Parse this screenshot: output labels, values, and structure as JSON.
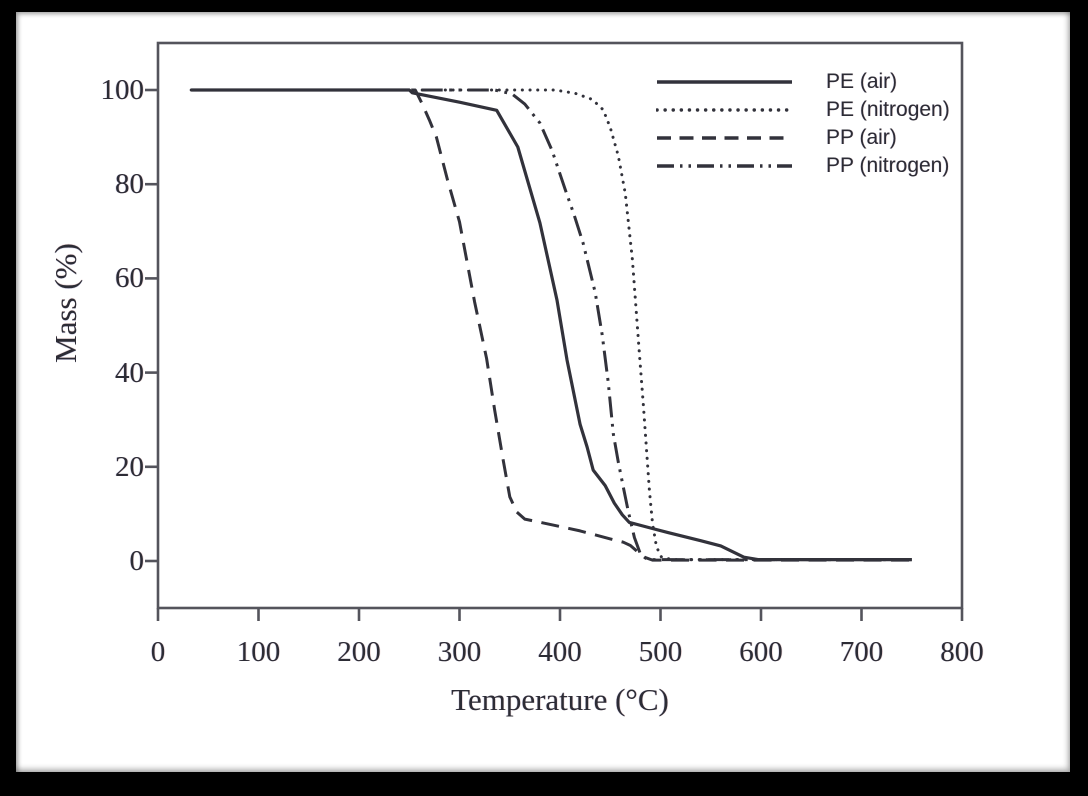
{
  "figure": {
    "paper_color": "#ffffff",
    "frame_color": "#000000",
    "ink_color": "#32323b",
    "axis_color": "#54545c"
  },
  "chart_data": {
    "type": "line",
    "title": "",
    "xlabel": "Temperature (°C)",
    "ylabel": "Mass (%)",
    "xlim": [
      0,
      800
    ],
    "ylim": [
      0,
      100
    ],
    "x_ticks": [
      0,
      100,
      200,
      300,
      400,
      500,
      600,
      700,
      800
    ],
    "y_ticks": [
      0,
      20,
      40,
      60,
      80,
      100
    ],
    "grid": false,
    "legend_position": "top-right",
    "series": [
      {
        "name": "PE (air)",
        "line_style": "solid",
        "points": [
          [
            33,
            100
          ],
          [
            250,
            100
          ],
          [
            253,
            99.4
          ],
          [
            300,
            97.4
          ],
          [
            337,
            95.7
          ],
          [
            358,
            87.9
          ],
          [
            380,
            71.8
          ],
          [
            397,
            55.4
          ],
          [
            407,
            42.7
          ],
          [
            420,
            29
          ],
          [
            427,
            24.2
          ],
          [
            433,
            19.3
          ],
          [
            445,
            16
          ],
          [
            454,
            12.3
          ],
          [
            462,
            9.8
          ],
          [
            469,
            8.2
          ],
          [
            490,
            7
          ],
          [
            508,
            6
          ],
          [
            540,
            4.3
          ],
          [
            560,
            3.2
          ],
          [
            583,
            0.8
          ],
          [
            597,
            0.3
          ],
          [
            750,
            0.3
          ]
        ]
      },
      {
        "name": "PE (nitrogen)",
        "line_style": "dotted",
        "points": [
          [
            33,
            100
          ],
          [
            395,
            100
          ],
          [
            415,
            99.3
          ],
          [
            432,
            98
          ],
          [
            443,
            95.8
          ],
          [
            450,
            92
          ],
          [
            458,
            86
          ],
          [
            465,
            78
          ],
          [
            472,
            64
          ],
          [
            479,
            44
          ],
          [
            483,
            33
          ],
          [
            486,
            24
          ],
          [
            489,
            15
          ],
          [
            492,
            8
          ],
          [
            496,
            3
          ],
          [
            501,
            0.8
          ],
          [
            512,
            0.3
          ],
          [
            750,
            0.3
          ]
        ]
      },
      {
        "name": "PP (air)",
        "line_style": "dashed",
        "points": [
          [
            33,
            100
          ],
          [
            256,
            100
          ],
          [
            263,
            97
          ],
          [
            270,
            93.6
          ],
          [
            277,
            90
          ],
          [
            288,
            81
          ],
          [
            300,
            72
          ],
          [
            315,
            55
          ],
          [
            327,
            43
          ],
          [
            335,
            32
          ],
          [
            343,
            22
          ],
          [
            350,
            13.6
          ],
          [
            357,
            10.4
          ],
          [
            365,
            8.9
          ],
          [
            385,
            8
          ],
          [
            420,
            6.4
          ],
          [
            450,
            4.7
          ],
          [
            463,
            4
          ],
          [
            470,
            3.3
          ],
          [
            477,
            2
          ],
          [
            484,
            0.8
          ],
          [
            492,
            0.2
          ],
          [
            750,
            0.2
          ]
        ]
      },
      {
        "name": "PP (nitrogen)",
        "line_style": "dash-dot-dot",
        "points": [
          [
            33,
            100
          ],
          [
            335,
            100
          ],
          [
            352,
            99.2
          ],
          [
            365,
            97
          ],
          [
            380,
            93
          ],
          [
            392,
            87.2
          ],
          [
            405,
            79
          ],
          [
            414,
            73.5
          ],
          [
            423,
            67.5
          ],
          [
            435,
            57
          ],
          [
            442,
            48
          ],
          [
            448,
            38
          ],
          [
            453,
            27
          ],
          [
            458,
            21
          ],
          [
            463,
            15.7
          ],
          [
            468,
            10.5
          ],
          [
            474,
            5
          ],
          [
            480,
            1.5
          ],
          [
            487,
            0.3
          ],
          [
            750,
            0.3
          ]
        ]
      }
    ]
  }
}
